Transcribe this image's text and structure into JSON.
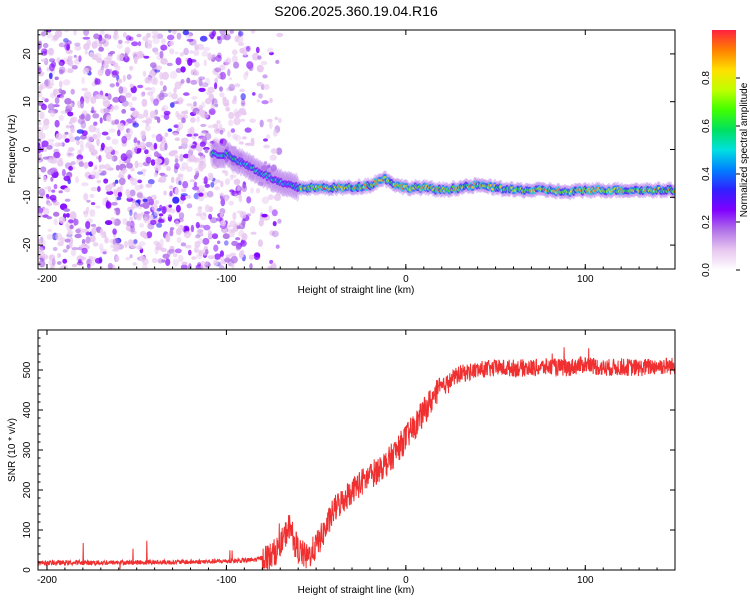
{
  "chart_data": [
    {
      "type": "heatmap",
      "title": "S206.2025.360.19.04.R16",
      "xlabel": "Height of straight line (km)",
      "ylabel": "Frequency (Hz)",
      "xlim": [
        -205,
        150
      ],
      "ylim": [
        -25,
        25
      ],
      "xticks": [
        -200,
        -100,
        0,
        100
      ],
      "xtick_labels": [
        "-200",
        "-100",
        "0",
        "100"
      ],
      "yticks": [
        -20,
        -10,
        0,
        10,
        20
      ],
      "ytick_labels": [
        "-20",
        "-10",
        "0",
        "10",
        "20"
      ],
      "colorbar": {
        "label": "Normalized spectral amplitude",
        "range": [
          0,
          1
        ],
        "ticks": [
          0.0,
          0.2,
          0.4,
          0.6,
          0.8
        ],
        "tick_labels": [
          "0.0",
          "0.2",
          "0.4",
          "0.6",
          "0.8"
        ],
        "colormap": [
          "#ffffff",
          "#e8c8f0",
          "#b070e8",
          "#8000ff",
          "#3020ff",
          "#0080ff",
          "#00e0e0",
          "#00e060",
          "#40ff00",
          "#c0ff00",
          "#ffe000",
          "#ff8000",
          "#ff2040"
        ]
      },
      "carrier_trace": {
        "description_points_x_km": [
          -100,
          -90,
          -80,
          -70,
          -60,
          -50,
          -40,
          -30,
          -20,
          -12,
          -5,
          0,
          10,
          20,
          30,
          40,
          50,
          60,
          70,
          80,
          90,
          100,
          110,
          120,
          130,
          140,
          150
        ],
        "frequency_hz": [
          -1,
          -3,
          -5,
          -7,
          -8,
          -8,
          -8,
          -8,
          -7.5,
          -6,
          -7.5,
          -8,
          -8,
          -8.5,
          -8,
          -7.5,
          -8,
          -8.5,
          -8.5,
          -8.5,
          -9,
          -8.5,
          -8.5,
          -8.5,
          -8.5,
          -8.5,
          -8.5
        ]
      }
    },
    {
      "type": "line",
      "xlabel": "Height of straight line (km)",
      "ylabel": "SNR (10 * v/v)",
      "xlim": [
        -205,
        150
      ],
      "ylim": [
        0,
        600
      ],
      "xticks": [
        -200,
        -100,
        0,
        100
      ],
      "xtick_labels": [
        "-200",
        "-100",
        "0",
        "100"
      ],
      "yticks": [
        0,
        100,
        200,
        300,
        400,
        500
      ],
      "ytick_labels": [
        "0",
        "100",
        "200",
        "300",
        "400",
        "500"
      ],
      "series": [
        {
          "name": "SNR",
          "color": "#f03030",
          "x": [
            -205,
            -180,
            -150,
            -120,
            -100,
            -85,
            -75,
            -70,
            -65,
            -60,
            -55,
            -50,
            -45,
            -40,
            -30,
            -20,
            -10,
            -5,
            0,
            5,
            10,
            15,
            20,
            25,
            30,
            40,
            50,
            60,
            70,
            80,
            90,
            100,
            110,
            120,
            130,
            140,
            150
          ],
          "y": [
            18,
            18,
            19,
            20,
            22,
            25,
            35,
            60,
            110,
            50,
            30,
            60,
            100,
            150,
            200,
            235,
            270,
            300,
            330,
            360,
            395,
            430,
            455,
            475,
            490,
            500,
            505,
            505,
            505,
            508,
            505,
            515,
            505,
            508,
            505,
            510,
            510
          ]
        }
      ]
    }
  ]
}
